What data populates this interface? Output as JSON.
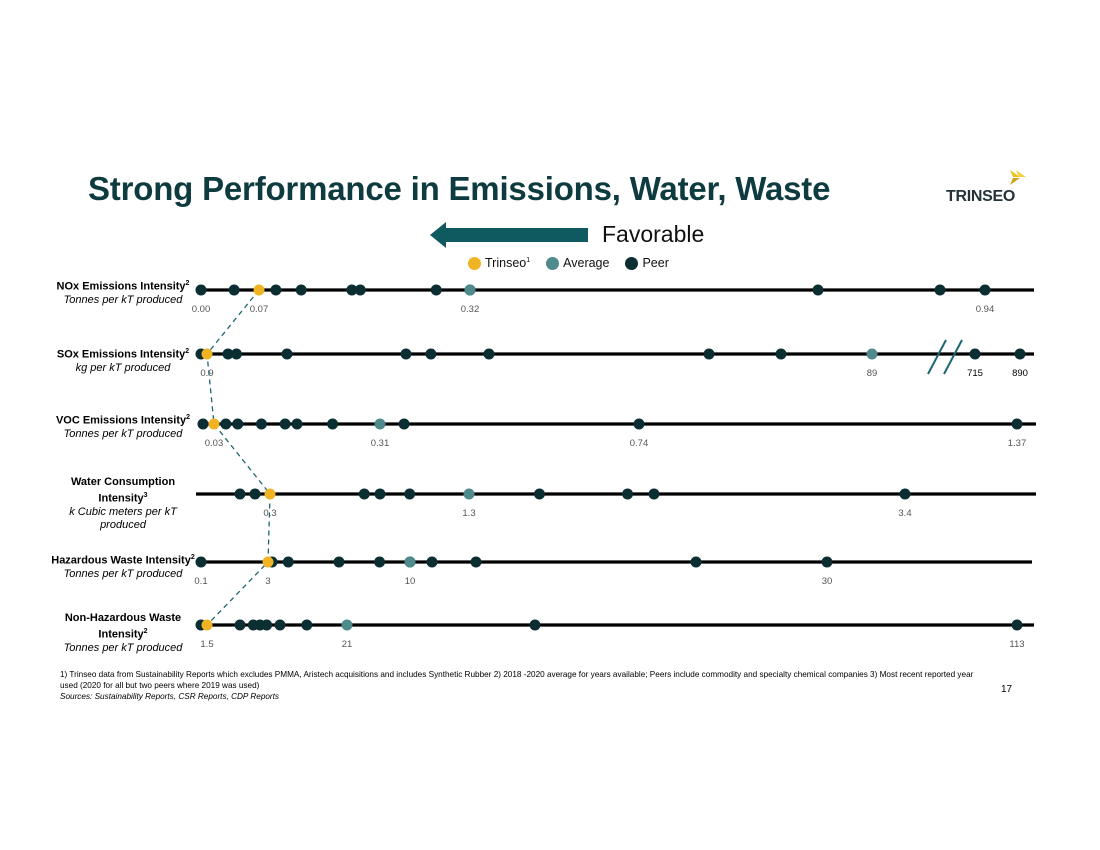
{
  "slide": {
    "title": "Strong Performance in Emissions, Water, Waste",
    "logo_text": "TRINSEO",
    "logo_mark": "",
    "favorable_label": "Favorable",
    "footnote": "1) Trinseo data from Sustainability Reports which excludes PMMA, Aristech acquisitions and includes Synthetic Rubber 2) 2018 -2020 average for years available; Peers include commodity and specialty chemical companies 3) Most recent reported year used (2020 for all but two peers where 2019 was used)",
    "sources": "Sources: Sustainability Reports, CSR Reports, CDP Reports",
    "page_number": "17"
  },
  "colors": {
    "title": "#0d3b3f",
    "trinseo": "#f0b323",
    "average": "#4f8a8c",
    "peer": "#0b2e33",
    "line": "#000000",
    "connector": "#1f6670",
    "arrow": "#0f5a60"
  },
  "chart_data": {
    "type": "scatter",
    "legend": [
      {
        "label": "Trinseo",
        "sup": "1",
        "role": "trinseo"
      },
      {
        "label": "Average",
        "sup": "",
        "role": "average"
      },
      {
        "label": "Peer",
        "sup": "",
        "role": "peer"
      }
    ],
    "rows": [
      {
        "name": "NOx Emissions Intensity",
        "name_sup": "2",
        "unit": "Tonnes per kT produced",
        "ticks": [
          "0.00",
          "0.07",
          "0.32",
          "0.94"
        ],
        "trinseo": 0.07,
        "average": 0.32,
        "peers": [
          0.0,
          0.04,
          0.09,
          0.12,
          0.18,
          0.19,
          0.28,
          0.32,
          0.75,
          0.89,
          0.94
        ]
      },
      {
        "name": "SOx Emissions Intensity",
        "name_sup": "2",
        "unit": "kg per kT produced",
        "ticks": [
          "0.9",
          "89",
          "715",
          "890"
        ],
        "trinseo": 0.9,
        "average": 89,
        "peers": [
          0,
          3,
          4,
          10,
          24,
          27,
          34,
          59,
          67,
          715,
          890
        ]
      },
      {
        "name": "VOC Emissions Intensity",
        "name_sup": "2",
        "unit": "Tonnes per kT produced",
        "ticks": [
          "0.03",
          "0.31",
          "0.74",
          "1.37"
        ],
        "trinseo": 0.03,
        "average": 0.31,
        "peers": [
          0.0,
          0.05,
          0.07,
          0.11,
          0.15,
          0.17,
          0.23,
          0.35,
          0.74,
          1.37
        ]
      },
      {
        "name": "Water Consumption Intensity",
        "name_sup": "3",
        "unit": "k Cubic meters per kT produced",
        "ticks": [
          "0.3",
          "1.3",
          "3.4"
        ],
        "trinseo": 0.3,
        "average": 1.3,
        "peers": [
          0.1,
          0.2,
          0.9,
          1.1,
          1.0,
          1.7,
          2.2,
          2.35,
          3.4
        ]
      },
      {
        "name": "Hazardous Waste Intensity",
        "name_sup": "2",
        "unit": "Tonnes per kT produced",
        "ticks": [
          "0.1",
          "3",
          "10",
          "30"
        ],
        "trinseo": 3,
        "average": 10,
        "peers": [
          0.1,
          3.2,
          4,
          6.5,
          8.5,
          10,
          11,
          13,
          23,
          30
        ]
      },
      {
        "name": "Non-Hazardous Waste Intensity",
        "name_sup": "2",
        "unit": "Tonnes per kT produced",
        "ticks": [
          "1.5",
          "21",
          "113"
        ],
        "trinseo": 1.5,
        "average": 21,
        "peers": [
          0.5,
          5,
          7,
          8,
          9,
          11,
          15,
          50,
          113
        ]
      }
    ]
  }
}
